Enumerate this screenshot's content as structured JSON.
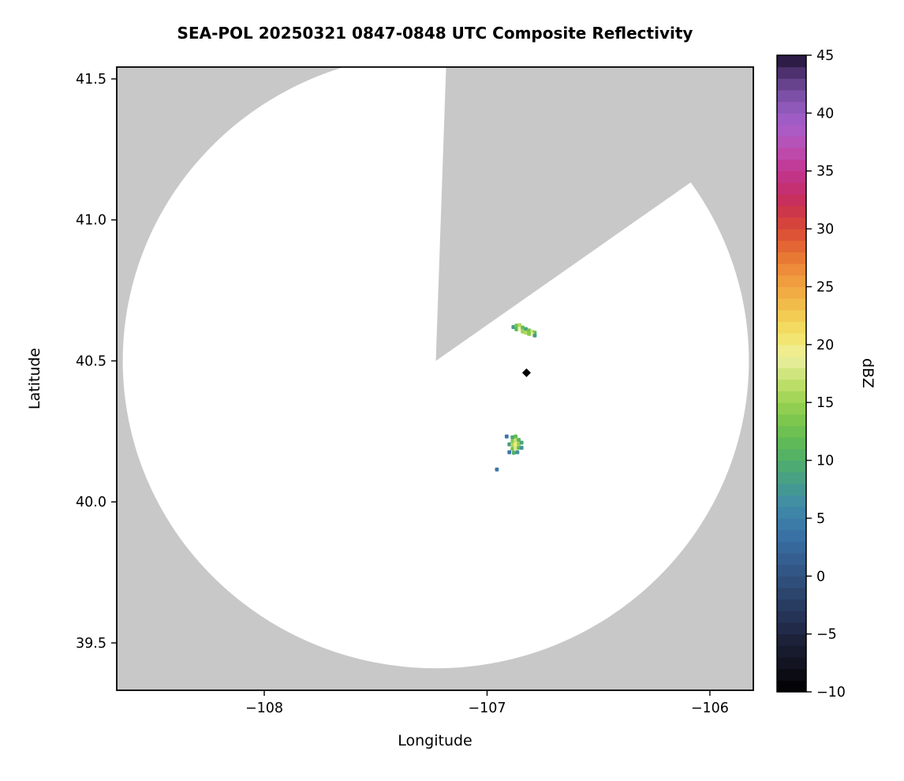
{
  "figure": {
    "background": "#ffffff"
  },
  "chart_data": {
    "type": "heatmap",
    "title": "SEA-POL 20250321 0847-0848 UTC Composite Reflectivity",
    "xlabel": "Longitude",
    "ylabel": "Latitude",
    "xlim": [
      -108.662,
      -105.805
    ],
    "ylim": [
      39.332,
      41.542
    ],
    "grid": false,
    "x_ticks": [
      {
        "value": -108,
        "label": "−108"
      },
      {
        "value": -107,
        "label": "−107"
      },
      {
        "value": -106,
        "label": "−106"
      }
    ],
    "y_ticks": [
      {
        "value": 39.5,
        "label": "39.5"
      },
      {
        "value": 40.0,
        "label": "40.0"
      },
      {
        "value": 40.5,
        "label": "40.5"
      },
      {
        "value": 41.0,
        "label": "41.0"
      },
      {
        "value": 41.5,
        "label": "41.5"
      }
    ],
    "colorbar": {
      "label": "dBZ",
      "vmin": -10,
      "vmax": 45,
      "ticks": [
        {
          "value": 45,
          "label": "45"
        },
        {
          "value": 40,
          "label": "40"
        },
        {
          "value": 35,
          "label": "35"
        },
        {
          "value": 30,
          "label": "30"
        },
        {
          "value": 25,
          "label": "25"
        },
        {
          "value": 20,
          "label": "20"
        },
        {
          "value": 15,
          "label": "15"
        },
        {
          "value": 10,
          "label": "10"
        },
        {
          "value": 5,
          "label": "5"
        },
        {
          "value": 0,
          "label": "0"
        },
        {
          "value": -5,
          "label": "−5"
        },
        {
          "value": -10,
          "label": "−10"
        }
      ],
      "stops": [
        {
          "v": -10,
          "color": "#000000"
        },
        {
          "v": -8,
          "color": "#10101c"
        },
        {
          "v": -6,
          "color": "#1b1e33"
        },
        {
          "v": -4,
          "color": "#232f50"
        },
        {
          "v": -2,
          "color": "#2a4066"
        },
        {
          "v": 0,
          "color": "#30527f"
        },
        {
          "v": 2,
          "color": "#366397"
        },
        {
          "v": 4,
          "color": "#3b76a8"
        },
        {
          "v": 6,
          "color": "#3f8aa8"
        },
        {
          "v": 8,
          "color": "#459c8b"
        },
        {
          "v": 10,
          "color": "#4fae6a"
        },
        {
          "v": 12,
          "color": "#65bc52"
        },
        {
          "v": 14,
          "color": "#86ca4e"
        },
        {
          "v": 15,
          "color": "#9ad254"
        },
        {
          "v": 16,
          "color": "#b0da5e"
        },
        {
          "v": 18,
          "color": "#dbe988"
        },
        {
          "v": 19,
          "color": "#edf0a2"
        },
        {
          "v": 20,
          "color": "#f2ea79"
        },
        {
          "v": 22,
          "color": "#f3d458"
        },
        {
          "v": 24,
          "color": "#f2b447"
        },
        {
          "v": 26,
          "color": "#ef953c"
        },
        {
          "v": 28,
          "color": "#e66f33"
        },
        {
          "v": 30,
          "color": "#d84a36"
        },
        {
          "v": 32,
          "color": "#c93050"
        },
        {
          "v": 33,
          "color": "#c52e68"
        },
        {
          "v": 35,
          "color": "#c1368f"
        },
        {
          "v": 37,
          "color": "#bb4fb4"
        },
        {
          "v": 39,
          "color": "#a75ec9"
        },
        {
          "v": 41,
          "color": "#8657b3"
        },
        {
          "v": 43,
          "color": "#5c3c82"
        },
        {
          "v": 45,
          "color": "#1d1130"
        }
      ]
    },
    "radar_coverage": {
      "center": {
        "lon": -107.23,
        "lat": 40.5
      },
      "radius_lon_deg": 1.405,
      "radius_lat_deg": 1.09,
      "blocked_sector_azimuth_deg": [
        2,
        55
      ],
      "coverage_color": "#ffffff",
      "background_color": "#c8c8c8"
    },
    "site_marker": {
      "lon": -106.823,
      "lat": 40.458,
      "shape": "diamond",
      "color": "#000000"
    },
    "cell_size_deg": {
      "lon": 0.017,
      "lat": 0.014
    },
    "echoes": [
      {
        "name": "cell-north",
        "cells": [
          [
            -106.882,
            40.62,
            8
          ],
          [
            -106.868,
            40.625,
            13
          ],
          [
            -106.854,
            40.627,
            16
          ],
          [
            -106.868,
            40.612,
            11
          ],
          [
            -106.854,
            40.614,
            19
          ],
          [
            -106.84,
            40.618,
            12
          ],
          [
            -106.826,
            40.613,
            9
          ],
          [
            -106.84,
            40.604,
            15
          ],
          [
            -106.826,
            40.6,
            16
          ],
          [
            -106.812,
            40.608,
            13
          ],
          [
            -106.798,
            40.604,
            17
          ],
          [
            -106.786,
            40.6,
            12
          ],
          [
            -106.798,
            40.594,
            19
          ],
          [
            -106.812,
            40.596,
            14
          ],
          [
            -106.786,
            40.59,
            8
          ]
        ]
      },
      {
        "name": "cell-south",
        "cells": [
          [
            -106.912,
            40.232,
            4
          ],
          [
            -106.886,
            40.229,
            9
          ],
          [
            -106.872,
            40.232,
            12
          ],
          [
            -106.886,
            40.216,
            14
          ],
          [
            -106.872,
            40.218,
            17
          ],
          [
            -106.858,
            40.22,
            11
          ],
          [
            -106.9,
            40.204,
            8
          ],
          [
            -106.886,
            40.202,
            16
          ],
          [
            -106.872,
            40.204,
            20
          ],
          [
            -106.858,
            40.206,
            15
          ],
          [
            -106.845,
            40.21,
            9
          ],
          [
            -106.886,
            40.188,
            13
          ],
          [
            -106.872,
            40.19,
            18
          ],
          [
            -106.858,
            40.192,
            12
          ],
          [
            -106.845,
            40.192,
            7
          ],
          [
            -106.9,
            40.176,
            4
          ],
          [
            -106.88,
            40.174,
            10
          ],
          [
            -106.864,
            40.176,
            7
          ]
        ]
      },
      {
        "name": "cell-tiny",
        "cells": [
          [
            -106.956,
            40.115,
            4
          ]
        ]
      }
    ]
  }
}
